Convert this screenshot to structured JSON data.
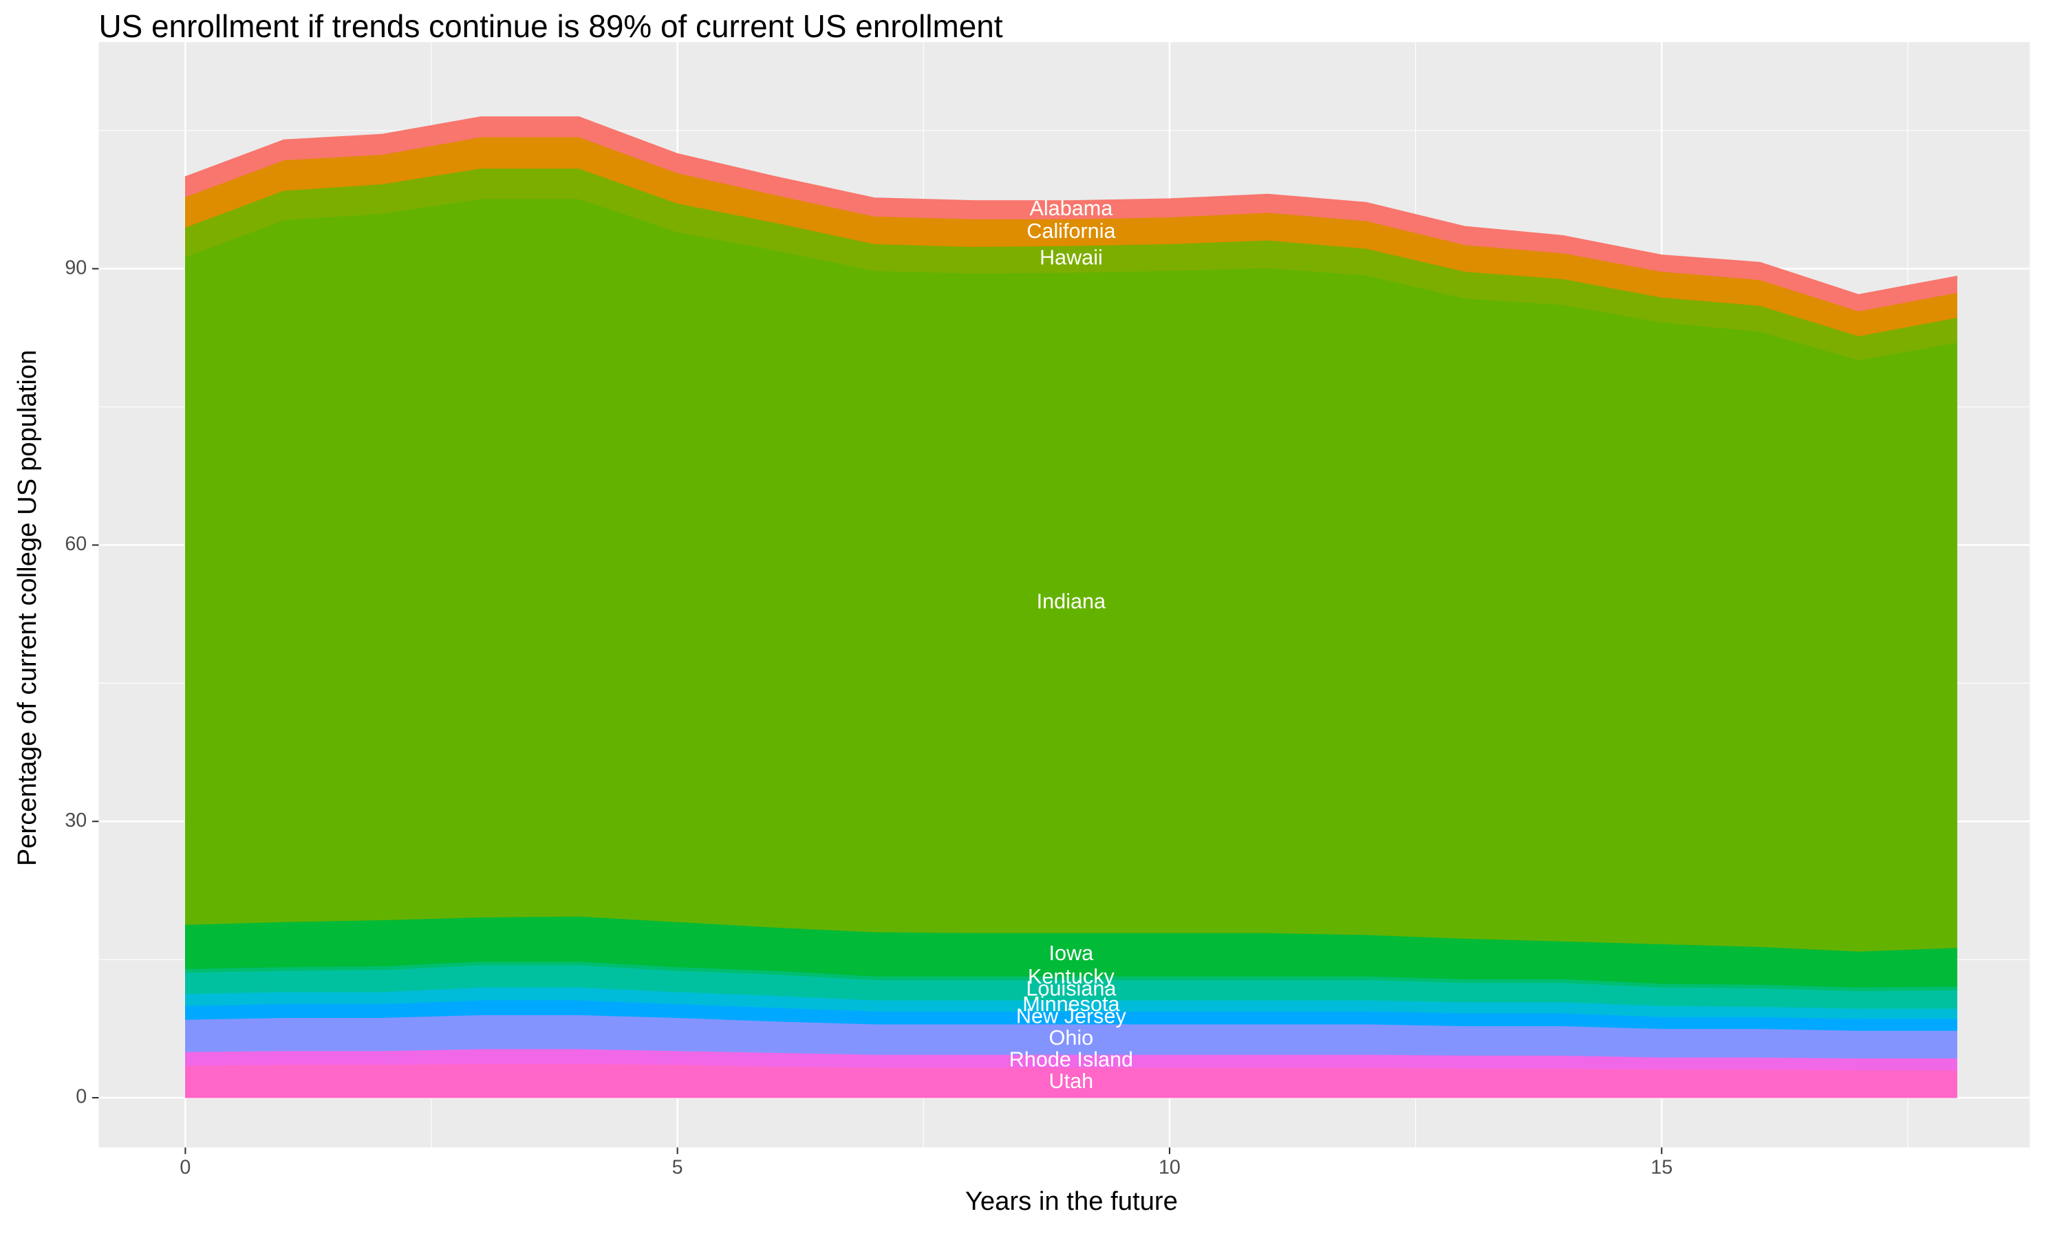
{
  "chart_data": {
    "type": "stacked_area",
    "title": "US enrollment if trends continue is 89% of current US enrollment",
    "x_label": "Years in the future",
    "y_label": "Percentage of current college US population",
    "x": [
      0,
      1,
      2,
      3,
      4,
      5,
      6,
      7,
      8,
      9,
      10,
      11,
      12,
      13,
      14,
      15,
      16,
      17,
      18
    ],
    "xlim": [
      -0.88,
      18.74
    ],
    "xticks": [
      0,
      5,
      10,
      15
    ],
    "ylim": [
      -5.4,
      114.6
    ],
    "yticks": [
      0,
      30,
      60,
      90
    ],
    "grid": true,
    "series": [
      {
        "name": "Utah",
        "color": "#ff66c8",
        "values": [
          3.5,
          3.6,
          3.6,
          3.7,
          3.7,
          3.6,
          3.4,
          3.3,
          3.3,
          3.3,
          3.3,
          3.3,
          3.3,
          3.2,
          3.2,
          3.1,
          3.1,
          3.0,
          3.0
        ]
      },
      {
        "name": "Rhode Island",
        "color": "#f068e8",
        "values": [
          1.5,
          1.5,
          1.5,
          1.6,
          1.6,
          1.5,
          1.5,
          1.4,
          1.4,
          1.4,
          1.4,
          1.4,
          1.4,
          1.4,
          1.4,
          1.3,
          1.3,
          1.3,
          1.3
        ]
      },
      {
        "name": "Ohio",
        "color": "#8494ff",
        "values": [
          3.5,
          3.6,
          3.6,
          3.7,
          3.7,
          3.6,
          3.4,
          3.3,
          3.3,
          3.3,
          3.3,
          3.3,
          3.3,
          3.2,
          3.2,
          3.1,
          3.1,
          3.0,
          3.0
        ]
      },
      {
        "name": "New Jersey",
        "color": "#00a9ff",
        "values": [
          1.5,
          1.5,
          1.5,
          1.6,
          1.6,
          1.5,
          1.5,
          1.4,
          1.4,
          1.4,
          1.4,
          1.4,
          1.4,
          1.4,
          1.4,
          1.3,
          1.3,
          1.3,
          1.3
        ]
      },
      {
        "name": "Minnesota",
        "color": "#00bcd8",
        "values": [
          1.3,
          1.3,
          1.3,
          1.4,
          1.4,
          1.3,
          1.3,
          1.2,
          1.2,
          1.2,
          1.2,
          1.2,
          1.2,
          1.2,
          1.2,
          1.2,
          1.1,
          1.1,
          1.1
        ]
      },
      {
        "name": "Louisiana",
        "color": "#00c19f",
        "values": [
          2.3,
          2.3,
          2.4,
          2.4,
          2.4,
          2.3,
          2.3,
          2.2,
          2.2,
          2.2,
          2.2,
          2.2,
          2.2,
          2.1,
          2.1,
          2.0,
          2.0,
          1.9,
          2.0
        ]
      },
      {
        "name": "Kentucky",
        "color": "#00be70",
        "values": [
          0.4,
          0.4,
          0.4,
          0.4,
          0.4,
          0.4,
          0.4,
          0.4,
          0.4,
          0.4,
          0.4,
          0.4,
          0.4,
          0.4,
          0.4,
          0.4,
          0.4,
          0.4,
          0.4
        ]
      },
      {
        "name": "Iowa",
        "color": "#00ba38",
        "values": [
          4.8,
          4.9,
          5.0,
          4.8,
          4.9,
          4.9,
          4.7,
          4.8,
          4.7,
          4.7,
          4.7,
          4.7,
          4.5,
          4.4,
          4.1,
          4.3,
          4.1,
          3.9,
          4.2
        ]
      },
      {
        "name": "Indiana",
        "color": "#64b200",
        "values": [
          72.5,
          76.2,
          76.7,
          78.0,
          77.9,
          74.9,
          73.5,
          71.8,
          71.6,
          71.7,
          71.9,
          72.2,
          71.6,
          69.5,
          69.1,
          67.5,
          66.8,
          64.2,
          65.7
        ]
      },
      {
        "name": "Hawaii",
        "color": "#7cae00",
        "values": [
          3.2,
          3.2,
          3.2,
          3.3,
          3.3,
          3.1,
          3.0,
          2.9,
          2.9,
          2.9,
          2.9,
          3.0,
          2.9,
          2.9,
          2.8,
          2.7,
          2.8,
          2.6,
          2.7
        ]
      },
      {
        "name": "California",
        "color": "#de8c00",
        "values": [
          3.3,
          3.3,
          3.2,
          3.4,
          3.4,
          3.3,
          3.0,
          3.0,
          3.0,
          2.9,
          2.9,
          3.0,
          3.0,
          2.9,
          2.8,
          2.8,
          2.8,
          2.7,
          2.7
        ]
      },
      {
        "name": "Alabama",
        "color": "#f8766d",
        "values": [
          2.2,
          2.2,
          2.2,
          2.2,
          2.2,
          2.1,
          2.0,
          2.0,
          2.0,
          2.0,
          2.0,
          2.0,
          2.0,
          2.0,
          1.9,
          1.8,
          1.9,
          1.8,
          1.8
        ]
      }
    ]
  }
}
